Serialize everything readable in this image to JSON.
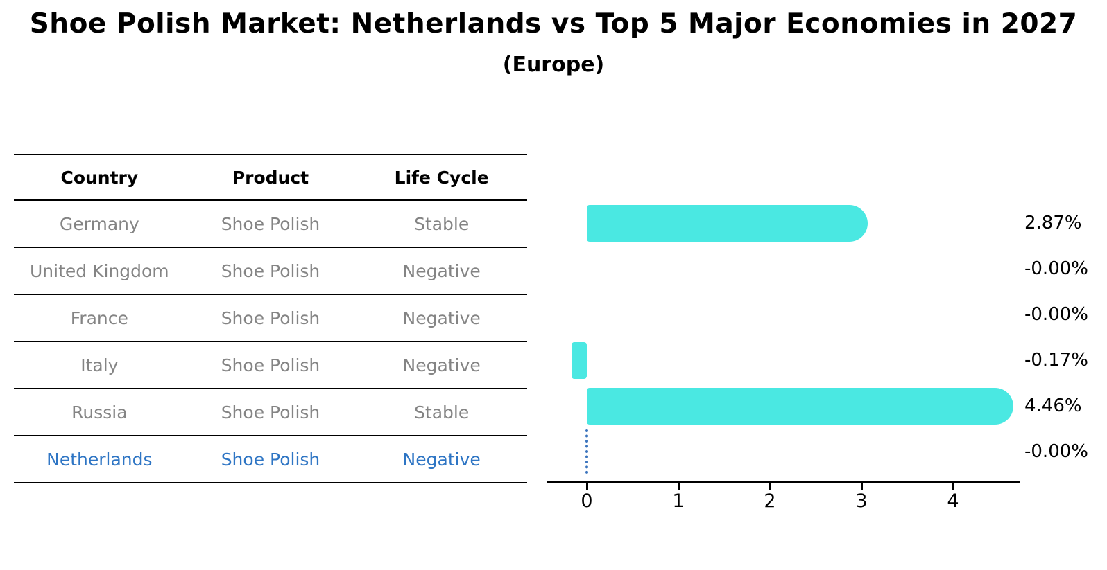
{
  "title": "Shoe Polish Market: Netherlands vs Top 5 Major Economies in 2027",
  "subtitle": "(Europe)",
  "table": {
    "headers": [
      "Country",
      "Product",
      "Life Cycle"
    ],
    "rows": [
      {
        "country": "Germany",
        "product": "Shoe Polish",
        "life_cycle": "Stable",
        "highlighted": false
      },
      {
        "country": "United Kingdom",
        "product": "Shoe Polish",
        "life_cycle": "Negative",
        "highlighted": false
      },
      {
        "country": "France",
        "product": "Shoe Polish",
        "life_cycle": "Negative",
        "highlighted": false
      },
      {
        "country": "Italy",
        "product": "Shoe Polish",
        "life_cycle": "Negative",
        "highlighted": false
      },
      {
        "country": "Russia",
        "product": "Shoe Polish",
        "life_cycle": "Stable",
        "highlighted": false
      },
      {
        "country": "Netherlands",
        "product": "Shoe Polish",
        "life_cycle": "Negative",
        "highlighted": true
      }
    ]
  },
  "chart_data": {
    "type": "bar",
    "orientation": "horizontal",
    "categories": [
      "Germany",
      "United Kingdom",
      "France",
      "Italy",
      "Russia",
      "Netherlands"
    ],
    "values": [
      2.87,
      -0.0,
      -0.0,
      -0.17,
      4.46,
      -0.0
    ],
    "value_labels": [
      "2.87%",
      "-0.00%",
      "-0.00%",
      "-0.17%",
      "4.46%",
      "-0.00%"
    ],
    "x_ticks": [
      "0",
      "1",
      "2",
      "3",
      "4"
    ],
    "xlim": [
      -0.44,
      4.73
    ],
    "grid": false,
    "legend": "none",
    "bar_color": "#4ae8e2",
    "highlight_marker": {
      "category": "Netherlands",
      "x": 0,
      "style": "dotted-line",
      "color": "#3b74bd"
    }
  },
  "colors": {
    "title_text": "#000000",
    "table_text": "#848484",
    "highlight_text": "#2e75c4",
    "bar": "#4ae8e2",
    "axis": "#000000",
    "reference_line": "#3b74bd"
  }
}
